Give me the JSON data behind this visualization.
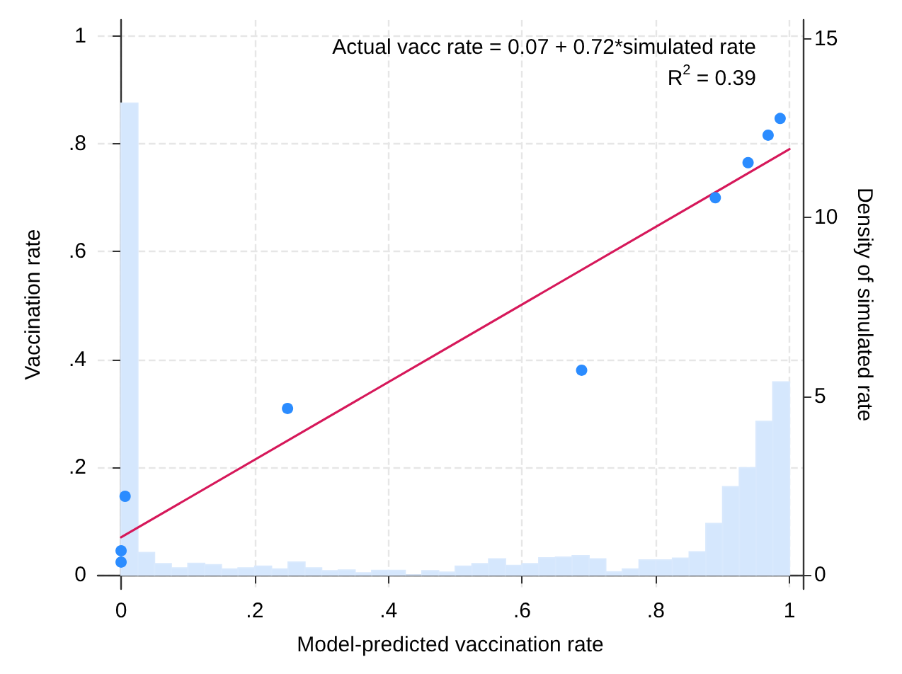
{
  "chart_data": {
    "type": "scatter",
    "xlabel": "Model-predicted vaccination rate",
    "ylabel": "Vaccination rate",
    "y2label": "Density of simulated rate",
    "annotations": [
      "Actual vacc rate = 0.07 + 0.72*simulated rate",
      "R$^{2}$ = 0.39"
    ],
    "xlim": [
      -0.035,
      1.02
    ],
    "xticks": [
      0,
      {
        "value": 0.2,
        "label": ".2"
      },
      {
        "value": 0.4,
        "label": ".4"
      },
      {
        "value": 0.6,
        "label": ".6"
      },
      {
        "value": 0.8,
        "label": ".8"
      },
      1
    ],
    "ylim": [
      -0.026,
      1.03
    ],
    "yticks": [
      0,
      {
        "value": 0.2,
        "label": ".2"
      },
      {
        "value": 0.4,
        "label": ".4"
      },
      {
        "value": 0.6,
        "label": ".6"
      },
      {
        "value": 0.8,
        "label": ".8"
      },
      1
    ],
    "y2lim": [
      -0.39,
      15.53
    ],
    "y2ticks": [
      0,
      5,
      10,
      15
    ],
    "grid": true,
    "marker": "circle",
    "line_style": "solid",
    "series": [
      {
        "type": "histogram",
        "axis": "y2",
        "color": "#d5e7fd",
        "bins": [
          0,
          0.025,
          0.05,
          0.075,
          0.1,
          0.125,
          0.15,
          0.175,
          0.2,
          0.225,
          0.25,
          0.275,
          0.3,
          0.325,
          0.35,
          0.375,
          0.4,
          0.425,
          0.45,
          0.475,
          0.5,
          0.525,
          0.55,
          0.575,
          0.6,
          0.625,
          0.65,
          0.675,
          0.7,
          0.725,
          0.75,
          0.775,
          0.8,
          0.825,
          0.85,
          0.875,
          0.9,
          0.925,
          0.95,
          0.975,
          1
        ],
        "values": [
          13.2,
          0.63,
          0.32,
          0.2,
          0.33,
          0.29,
          0.17,
          0.2,
          0.25,
          0.17,
          0.36,
          0.2,
          0.12,
          0.14,
          0.06,
          0.13,
          0.13,
          0,
          0.12,
          0.08,
          0.25,
          0.32,
          0.45,
          0.27,
          0.32,
          0.48,
          0.5,
          0.54,
          0.45,
          0.09,
          0.17,
          0.42,
          0.42,
          0.47,
          0.65,
          1.44,
          2.47,
          3.0,
          4.3,
          5.4
        ]
      },
      {
        "type": "line",
        "marker": "none",
        "color": "#d6185a",
        "x": [
          0,
          1
        ],
        "values": [
          0.07,
          0.79
        ]
      },
      {
        "color": "#2b8cff",
        "x": [
          0,
          0,
          0.006,
          0.249,
          0.689,
          0.889,
          0.938,
          0.968,
          0.986
        ],
        "values": [
          0.024,
          0.045,
          0.146,
          0.309,
          0.38,
          0.7,
          0.765,
          0.816,
          0.847
        ]
      }
    ]
  }
}
